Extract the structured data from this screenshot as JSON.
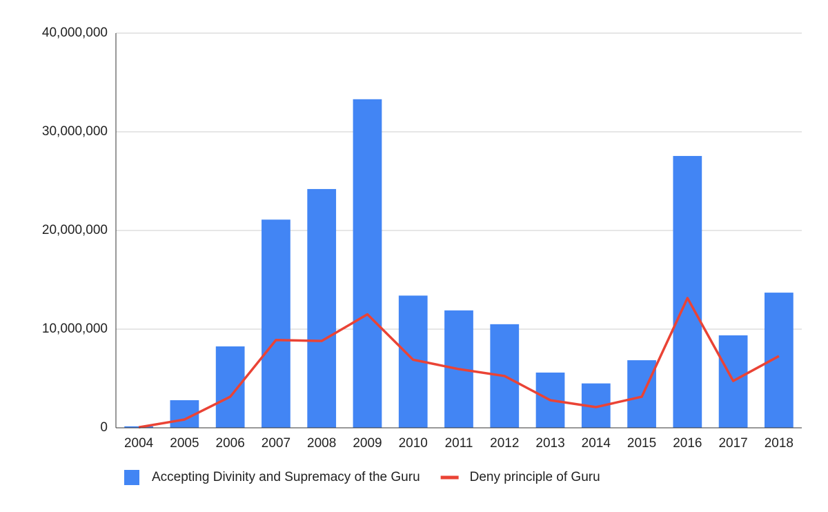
{
  "chart_data": {
    "type": "combo",
    "categories": [
      "2004",
      "2005",
      "2006",
      "2007",
      "2008",
      "2009",
      "2010",
      "2011",
      "2012",
      "2013",
      "2014",
      "2015",
      "2016",
      "2017",
      "2018"
    ],
    "series": [
      {
        "name": "Accepting Divinity and Supremacy of the Guru",
        "type": "bar",
        "color": "#4285f4",
        "values": [
          150000,
          2800000,
          8250000,
          21100000,
          24200000,
          33300000,
          13400000,
          11900000,
          10500000,
          5600000,
          4500000,
          6850000,
          27550000,
          9370000,
          13700000
        ]
      },
      {
        "name": "Deny principle of Guru",
        "type": "line",
        "color": "#ea4335",
        "values": [
          50000,
          840000,
          3150000,
          8900000,
          8800000,
          11500000,
          6900000,
          5950000,
          5250000,
          2800000,
          2100000,
          3150000,
          13150000,
          4750000,
          7270000
        ]
      }
    ],
    "ylim": [
      0,
      40000000
    ],
    "yticks": [
      0,
      {
        "value": 10000000,
        "label": "10,000,000"
      },
      {
        "value": 20000000,
        "label": "20,000,000"
      },
      {
        "value": 30000000,
        "label": "30,000,000"
      },
      {
        "value": 40000000,
        "label": "40,000,000"
      }
    ],
    "grid": true,
    "legend": "bottom"
  }
}
